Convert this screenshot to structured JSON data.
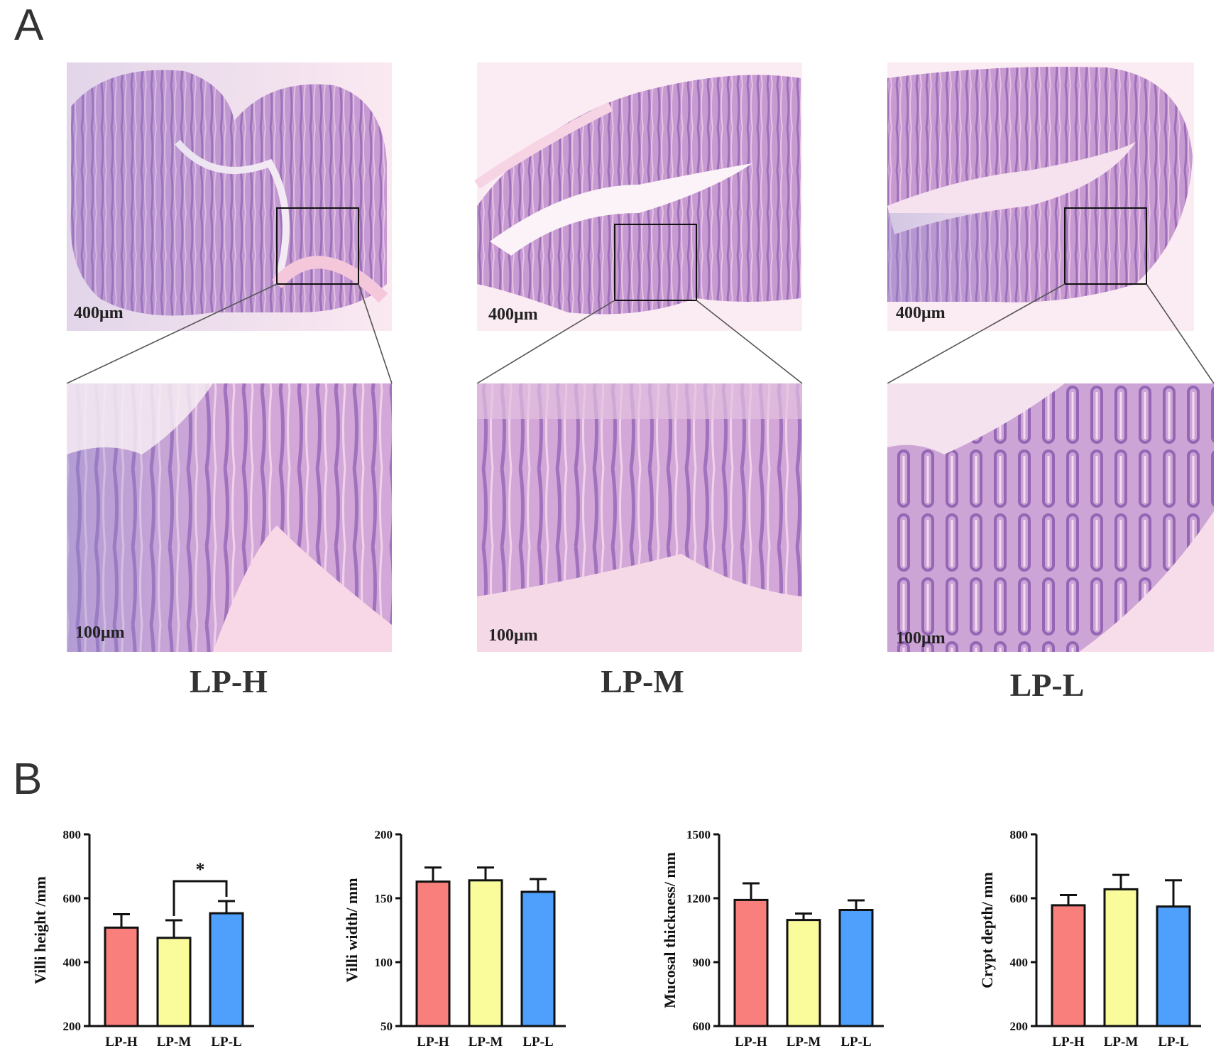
{
  "panel_a": {
    "label": "A",
    "groups": [
      {
        "name": "LP-H",
        "overview_scale": "400μm",
        "zoom_scale": "100μm"
      },
      {
        "name": "LP-M",
        "overview_scale": "400μm",
        "zoom_scale": "100μm"
      },
      {
        "name": "LP-L",
        "overview_scale": "400μm",
        "zoom_scale": "100μm"
      }
    ]
  },
  "panel_b": {
    "label": "B",
    "colors": {
      "LP-H": "#f97f7c",
      "LP-M": "#fafc9c",
      "LP-L": "#4f9ffc"
    },
    "significance_marker": "*"
  },
  "chart_data": [
    {
      "type": "bar",
      "categories": [
        "LP-H",
        "LP-M",
        "LP-L"
      ],
      "values": [
        508,
        476,
        553
      ],
      "errors": [
        42,
        55,
        38
      ],
      "ylabel": "Villi height /mm",
      "ylim": [
        200,
        800
      ],
      "yticks": [
        200,
        400,
        600,
        800
      ],
      "significance": {
        "between": [
          "LP-M",
          "LP-L"
        ],
        "label": "*"
      }
    },
    {
      "type": "bar",
      "categories": [
        "LP-H",
        "LP-M",
        "LP-L"
      ],
      "values": [
        163,
        164,
        155
      ],
      "errors": [
        11,
        10,
        10
      ],
      "ylabel": "Villi width/ mm",
      "ylim": [
        50,
        200
      ],
      "yticks": [
        50,
        100,
        150,
        200
      ]
    },
    {
      "type": "bar",
      "categories": [
        "LP-H",
        "LP-M",
        "LP-L"
      ],
      "values": [
        1192,
        1098,
        1145
      ],
      "errors": [
        78,
        30,
        45
      ],
      "ylabel": "Mucosal thickness/ mm",
      "ylim": [
        600,
        1500
      ],
      "yticks": [
        600,
        900,
        1200,
        1500
      ]
    },
    {
      "type": "bar",
      "categories": [
        "LP-H",
        "LP-M",
        "LP-L"
      ],
      "values": [
        578,
        628,
        574
      ],
      "errors": [
        32,
        45,
        82
      ],
      "ylabel": "Crypt depth/ mm",
      "ylim": [
        200,
        800
      ],
      "yticks": [
        200,
        400,
        600,
        800
      ]
    }
  ]
}
